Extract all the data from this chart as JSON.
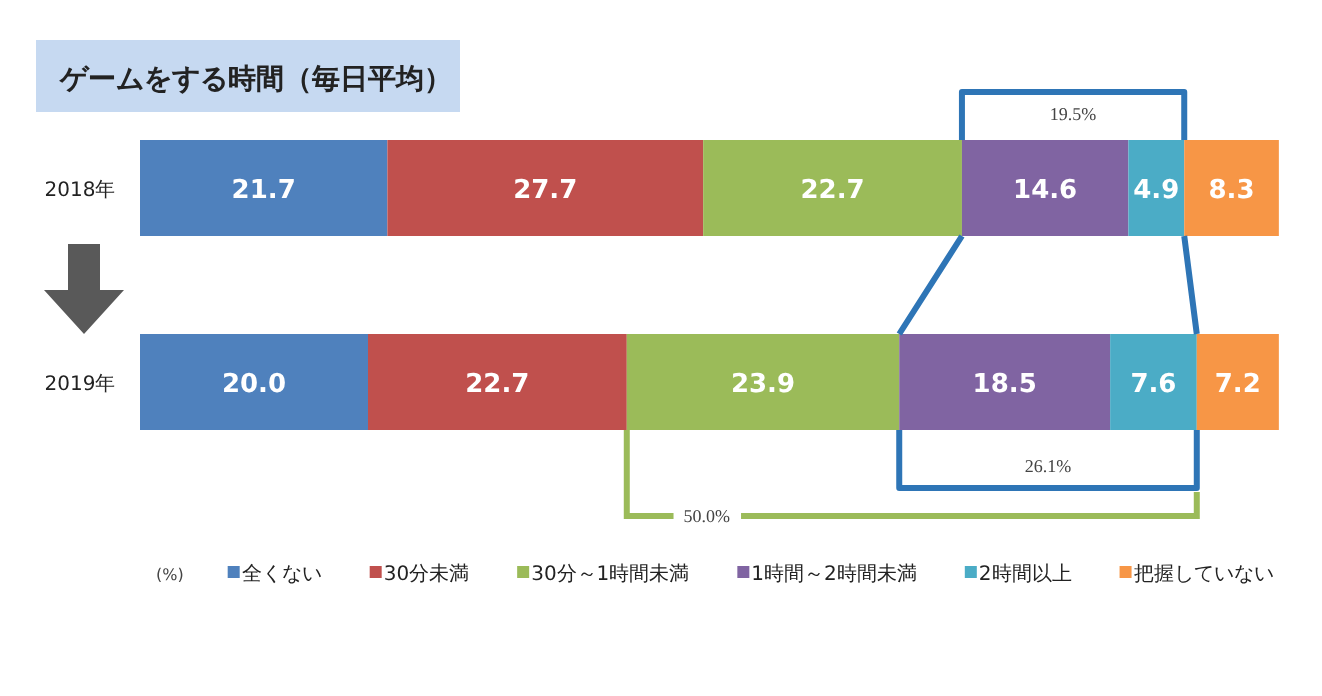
{
  "chart_data": {
    "type": "bar",
    "orientation": "horizontal",
    "stacked": true,
    "title": "ゲームをする時間（毎日平均）",
    "categories": [
      "2018年",
      "2019年"
    ],
    "series": [
      {
        "name": "全くない",
        "color": "#4f81bd",
        "values": [
          21.7,
          20.0
        ],
        "value_labels": [
          "21.7",
          "20.0"
        ]
      },
      {
        "name": "30分未満",
        "color": "#c0504d",
        "values": [
          27.7,
          22.7
        ]
      },
      {
        "name": "30分～1時間未満",
        "color": "#9bbb59",
        "values": [
          22.7,
          23.9
        ]
      },
      {
        "name": "1時間～2時間未満",
        "color": "#8064a2",
        "values": [
          14.6,
          18.5
        ]
      },
      {
        "name": "2時間以上",
        "color": "#4bacc6",
        "values": [
          4.9,
          7.6
        ]
      },
      {
        "name": "把握していない",
        "color": "#f79646",
        "values": [
          8.3,
          7.2
        ]
      }
    ],
    "xlim": [
      0,
      100
    ],
    "tick_labels": "y",
    "data_labels": true,
    "legend": "bottom",
    "legend_title": "(%)",
    "annotations": [
      "19.5%",
      "26.1%",
      "50.0%"
    ]
  }
}
